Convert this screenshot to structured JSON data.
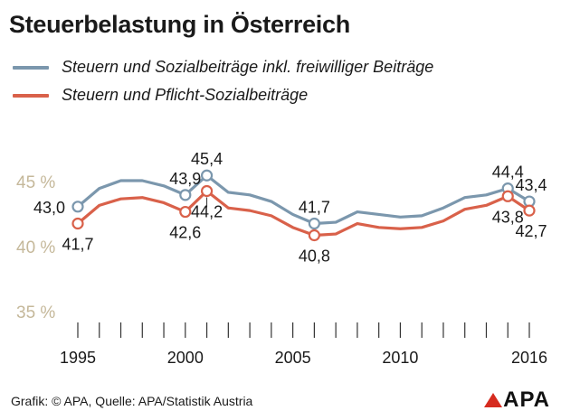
{
  "title": "Steuerbelastung in Österreich",
  "legend": [
    {
      "label": "Steuern und Sozialbeiträge inkl. freiwilliger Beiträge",
      "color": "#7b97ad"
    },
    {
      "label": "Steuern und Pflicht-Sozialbeiträge",
      "color": "#d9614a"
    }
  ],
  "footer": "Grafik: © APA, Quelle: APA/Statistik Austria",
  "logo": "APA",
  "colors": {
    "axis_label": "#c5b89a",
    "tick": "#333333",
    "marker_fill": "#ffffff"
  },
  "chart_data": {
    "type": "line",
    "title": "Steuerbelastung in Österreich",
    "xlabel": "",
    "ylabel": "",
    "xlim": [
      1995,
      2016
    ],
    "ylim": [
      35,
      45
    ],
    "x": [
      1995,
      1996,
      1997,
      1998,
      1999,
      2000,
      2001,
      2002,
      2003,
      2004,
      2005,
      2006,
      2007,
      2008,
      2009,
      2010,
      2011,
      2012,
      2013,
      2014,
      2015,
      2016
    ],
    "x_tick_labels": [
      "1995",
      "2000",
      "2005",
      "2010",
      "2016"
    ],
    "x_tick_values": [
      1995,
      2000,
      2005,
      2010,
      2016
    ],
    "y_tick_labels": [
      "45 %",
      "40 %",
      "35 %"
    ],
    "y_tick_values": [
      45,
      40,
      35
    ],
    "series": [
      {
        "name": "Steuern und Sozialbeiträge inkl. freiwilliger Beiträge",
        "color": "#7b97ad",
        "values": [
          43.0,
          44.4,
          45.0,
          45.0,
          44.6,
          43.9,
          45.4,
          44.1,
          43.9,
          43.4,
          42.4,
          41.7,
          41.8,
          42.6,
          42.4,
          42.2,
          42.3,
          42.9,
          43.7,
          43.9,
          44.4,
          43.4
        ],
        "markers": [
          {
            "x": 1995,
            "y": 43.0,
            "label": "43,0",
            "pos": "left"
          },
          {
            "x": 2000,
            "y": 43.9,
            "label": "43,9",
            "pos": "top"
          },
          {
            "x": 2001,
            "y": 45.4,
            "label": "45,4",
            "pos": "top"
          },
          {
            "x": 2006,
            "y": 41.7,
            "label": "41,7",
            "pos": "top"
          },
          {
            "x": 2015,
            "y": 44.4,
            "label": "44,4",
            "pos": "top"
          },
          {
            "x": 2016,
            "y": 43.4,
            "label": "43,4",
            "pos": "top"
          }
        ]
      },
      {
        "name": "Steuern und Pflicht-Sozialbeiträge",
        "color": "#d9614a",
        "values": [
          41.7,
          43.1,
          43.6,
          43.7,
          43.3,
          42.6,
          44.2,
          42.9,
          42.7,
          42.3,
          41.4,
          40.8,
          40.9,
          41.7,
          41.4,
          41.3,
          41.4,
          41.9,
          42.8,
          43.1,
          43.8,
          42.7
        ],
        "markers": [
          {
            "x": 1995,
            "y": 41.7,
            "label": "41,7",
            "pos": "bottom"
          },
          {
            "x": 2000,
            "y": 42.6,
            "label": "42,6",
            "pos": "bottom"
          },
          {
            "x": 2001,
            "y": 44.2,
            "label": "44,2",
            "pos": "bottom"
          },
          {
            "x": 2006,
            "y": 40.8,
            "label": "40,8",
            "pos": "bottom"
          },
          {
            "x": 2015,
            "y": 43.8,
            "label": "43,8",
            "pos": "bottom"
          },
          {
            "x": 2016,
            "y": 42.7,
            "label": "42,7",
            "pos": "bottom"
          }
        ]
      }
    ]
  }
}
